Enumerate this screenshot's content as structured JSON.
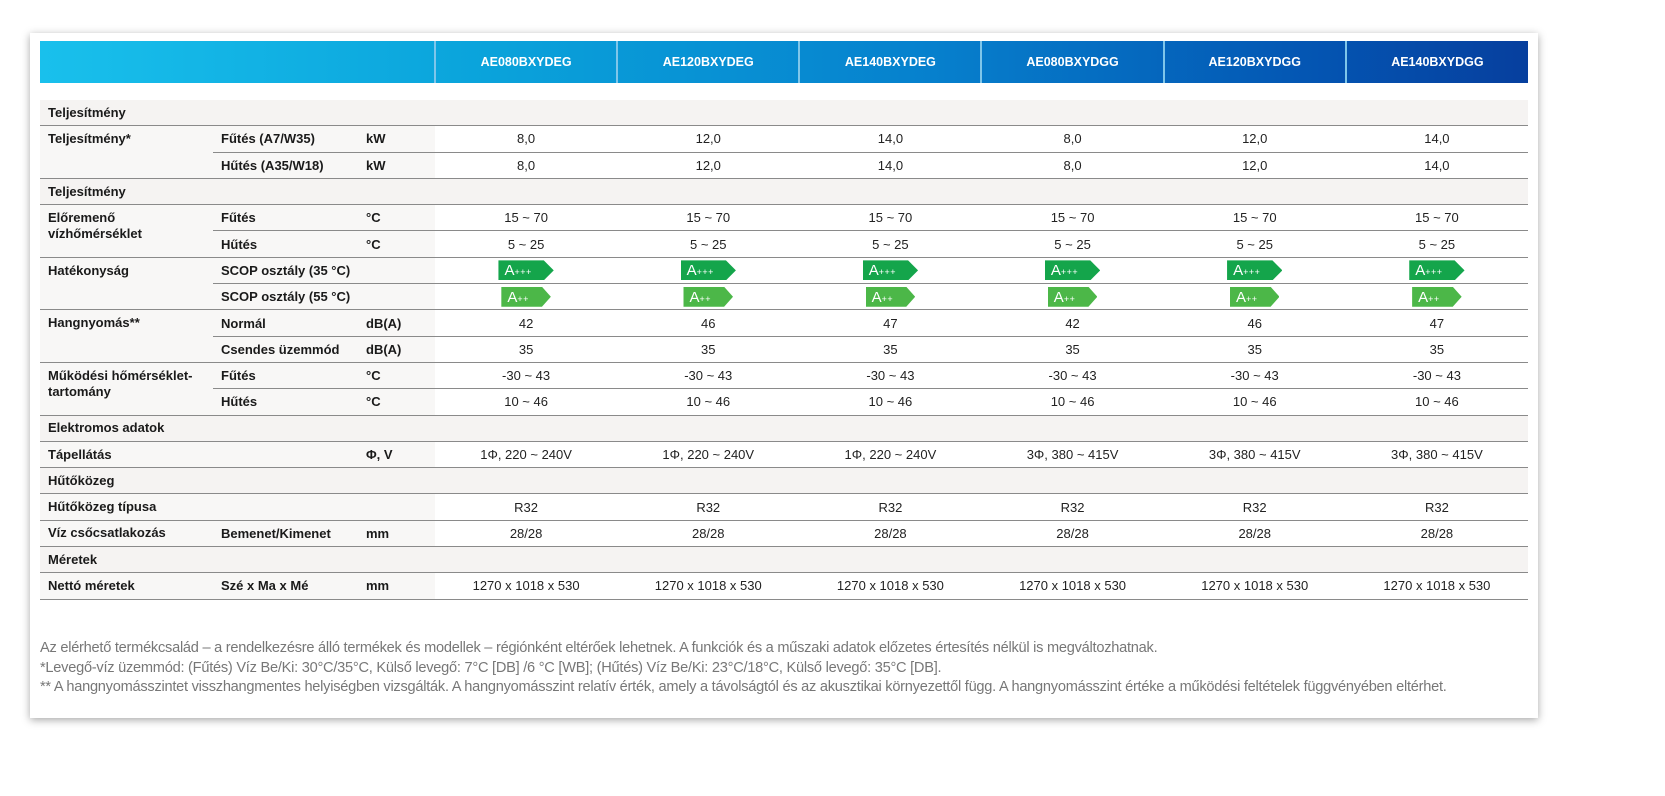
{
  "models": [
    "AE080BXYDEG",
    "AE120BXYDEG",
    "AE140BXYDEG",
    "AE080BXYDGG",
    "AE120BXYDGG",
    "AE140BXYDGG"
  ],
  "colors": {
    "header_start": "#19c0ec",
    "header_end": "#063f9e",
    "badge_a3": "#14a54b",
    "badge_a2": "#4cb748"
  },
  "rows": [
    {
      "type": "section",
      "label": "Teljesítmény"
    },
    {
      "label": "Teljesítmény*",
      "span": 2,
      "sub": "Fűtés (A7/W35)",
      "unit": "kW",
      "values": [
        "8,0",
        "12,0",
        "14,0",
        "8,0",
        "12,0",
        "14,0"
      ]
    },
    {
      "sub": "Hűtés (A35/W18)",
      "unit": "kW",
      "values": [
        "8,0",
        "12,0",
        "14,0",
        "8,0",
        "12,0",
        "14,0"
      ]
    },
    {
      "type": "section",
      "label": "Teljesítmény"
    },
    {
      "label": "Előremenő vízhőmérséklet",
      "span": 2,
      "sub": "Fűtés",
      "unit": "°C",
      "values": [
        "15 ~ 70",
        "15 ~ 70",
        "15 ~ 70",
        "15 ~ 70",
        "15 ~ 70",
        "15 ~ 70"
      ]
    },
    {
      "sub": "Hűtés",
      "unit": "°C",
      "values": [
        "5 ~ 25",
        "5 ~ 25",
        "5 ~ 25",
        "5 ~ 25",
        "5 ~ 25",
        "5 ~ 25"
      ]
    },
    {
      "label": "Hatékonyság",
      "span": 2,
      "sub": "SCOP osztály (35 °C)",
      "unit": "",
      "badge": "A+++",
      "values": [
        "A+++",
        "A+++",
        "A+++",
        "A+++",
        "A+++",
        "A+++"
      ]
    },
    {
      "sub": "SCOP osztály (55 °C)",
      "unit": "",
      "badge": "A++",
      "values": [
        "A++",
        "A++",
        "A++",
        "A++",
        "A++",
        "A++"
      ]
    },
    {
      "label": "Hangnyomás**",
      "span": 2,
      "sub": "Normál",
      "unit": "dB(A)",
      "values": [
        "42",
        "46",
        "47",
        "42",
        "46",
        "47"
      ]
    },
    {
      "sub": "Csendes üzemmód",
      "unit": "dB(A)",
      "values": [
        "35",
        "35",
        "35",
        "35",
        "35",
        "35"
      ]
    },
    {
      "label": "Működési hőmérséklet-tartomány",
      "span": 2,
      "sub": "Fűtés",
      "unit": "°C",
      "values": [
        "-30 ~ 43",
        "-30 ~ 43",
        "-30 ~ 43",
        "-30 ~ 43",
        "-30 ~ 43",
        "-30 ~ 43"
      ]
    },
    {
      "sub": "Hűtés",
      "unit": "°C",
      "values": [
        "10 ~ 46",
        "10 ~ 46",
        "10 ~ 46",
        "10 ~ 46",
        "10 ~ 46",
        "10 ~ 46"
      ]
    },
    {
      "type": "section",
      "label": "Elektromos adatok"
    },
    {
      "label": "Tápellátás",
      "span": 1,
      "sub": "",
      "unit": "Φ, V",
      "values": [
        "1Φ, 220 ~ 240V",
        "1Φ, 220 ~ 240V",
        "1Φ, 220 ~ 240V",
        "3Φ, 380 ~ 415V",
        "3Φ, 380 ~ 415V",
        "3Φ, 380 ~ 415V"
      ]
    },
    {
      "type": "section",
      "label": "Hűtőközeg"
    },
    {
      "label": "Hűtőközeg típusa",
      "span": 1,
      "sub": "",
      "unit": "",
      "values": [
        "R32",
        "R32",
        "R32",
        "R32",
        "R32",
        "R32"
      ]
    },
    {
      "label": "Víz csőcsatlakozás",
      "span": 1,
      "sub": "Bemenet/Kimenet",
      "unit": "mm",
      "values": [
        "28/28",
        "28/28",
        "28/28",
        "28/28",
        "28/28",
        "28/28"
      ]
    },
    {
      "type": "section",
      "label": "Méretek"
    },
    {
      "label": "Nettó méretek",
      "span": 1,
      "sub": "Szé x Ma x Mé",
      "unit": "mm",
      "values": [
        "1270 x 1018 x 530",
        "1270 x 1018 x 530",
        "1270 x 1018 x 530",
        "1270 x 1018 x 530",
        "1270 x 1018 x 530",
        "1270 x 1018 x 530"
      ]
    }
  ],
  "footnotes": [
    "Az elérhető termékcsalád – a rendelkezésre álló termékek és modellek – régiónként eltérőek lehetnek. A funkciók és a műszaki adatok előzetes értesítés nélkül is megváltozhatnak.",
    "*Levegő-víz üzemmód: (Fűtés) Víz Be/Ki: 30°C/35°C, Külső levegő: 7°C [DB] /6 °C [WB]; (Hűtés) Víz Be/Ki: 23°C/18°C, Külső levegő: 35°C [DB].",
    "** A hangnyomásszintet visszhangmentes helyiségben vizsgálták. A hangnyomásszint relatív érték, amely a távolságtól és az akusztikai környezettől függ. A hangnyomásszint értéke a működési feltételek függvényében eltérhet."
  ]
}
